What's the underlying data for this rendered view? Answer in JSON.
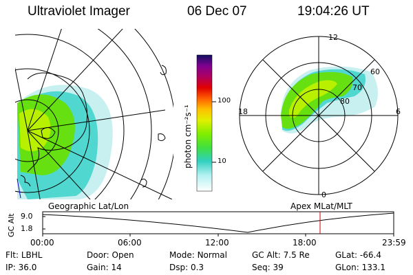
{
  "header": {
    "instrument": "Ultraviolet Imager",
    "date": "06 Dec 07",
    "time": "19:04:26 UT"
  },
  "colorbar": {
    "label": "photon cm⁻²s⁻¹",
    "ticks": [
      "100",
      "10"
    ]
  },
  "polar_plot": {
    "mlt_labels": {
      "top": "12",
      "left": "18",
      "right": "6",
      "bottom": "0"
    },
    "lat_labels": [
      "60",
      "70",
      "80"
    ]
  },
  "timeline": {
    "left_title": "Geographic Lat/Lon",
    "right_title": "Apex MLat/MLT",
    "y_axis_label": "GC Alt",
    "y_ticks": [
      "9.0",
      "1.8"
    ],
    "x_ticks": [
      "00:00",
      "06:00",
      "12:00",
      "18:00",
      "23:59"
    ],
    "marker_time": "19:04"
  },
  "info": {
    "row1": [
      {
        "label": "Flt:",
        "value": "LBHL"
      },
      {
        "label": "Door:",
        "value": "Open"
      },
      {
        "label": "Mode:",
        "value": "Normal"
      },
      {
        "label": "GC Alt:",
        "value": "7.5 Re"
      },
      {
        "label": "GLat:",
        "value": "-66.4"
      }
    ],
    "row2": [
      {
        "label": "IP:",
        "value": "36.0"
      },
      {
        "label": "Gain:",
        "value": "14"
      },
      {
        "label": "Dsp:",
        "value": "0.3"
      },
      {
        "label": "Seq:",
        "value": "39"
      },
      {
        "label": "GLon:",
        "value": "133.1"
      }
    ]
  },
  "colors": {
    "aurora_green": "#66e010",
    "aurora_yellow_green": "#b8f000",
    "aurora_cyan": "#40d8d8",
    "aurora_light": "#c8f0f0",
    "marker_red": "#cc0000"
  }
}
